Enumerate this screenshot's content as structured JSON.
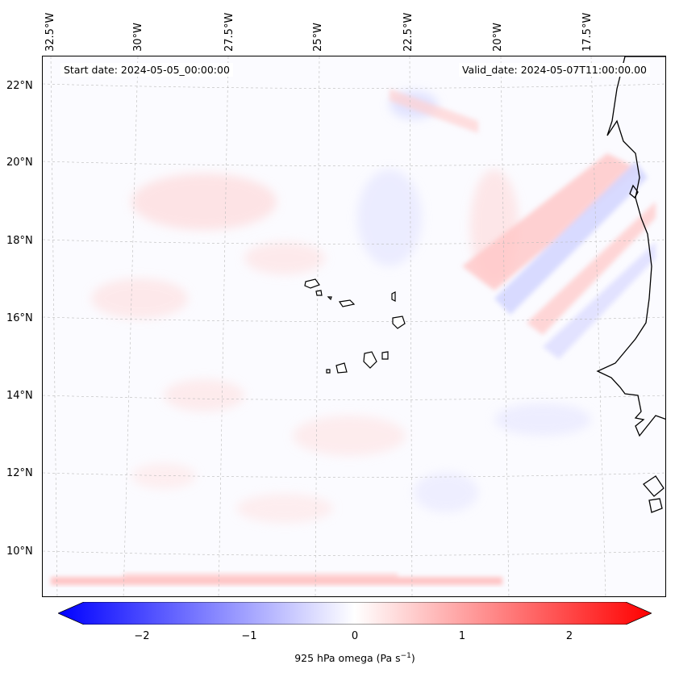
{
  "start_date": "Start date: 2024-05-05_00:00:00",
  "valid_date": "Valid_date: 2024-05-07T11:00:00.00",
  "lon_labels": [
    "32.5°W",
    "30°W",
    "27.5°W",
    "25°W",
    "22.5°W",
    "20°W",
    "17.5°W"
  ],
  "lat_labels": [
    "22°N",
    "20°N",
    "18°N",
    "16°N",
    "14°N",
    "12°N",
    "10°N"
  ],
  "colorbar": {
    "label": "925 hPa omega (Pa s",
    "label_sup": "−1",
    "label_end": ")",
    "ticks": [
      "−2",
      "−1",
      "0",
      "1",
      "2"
    ],
    "min_color": "#0000ff",
    "mid_color": "#ffffff",
    "max_color": "#ff0000"
  },
  "colors": {
    "coast": "#000000",
    "grid": "#bbbbbb"
  }
}
